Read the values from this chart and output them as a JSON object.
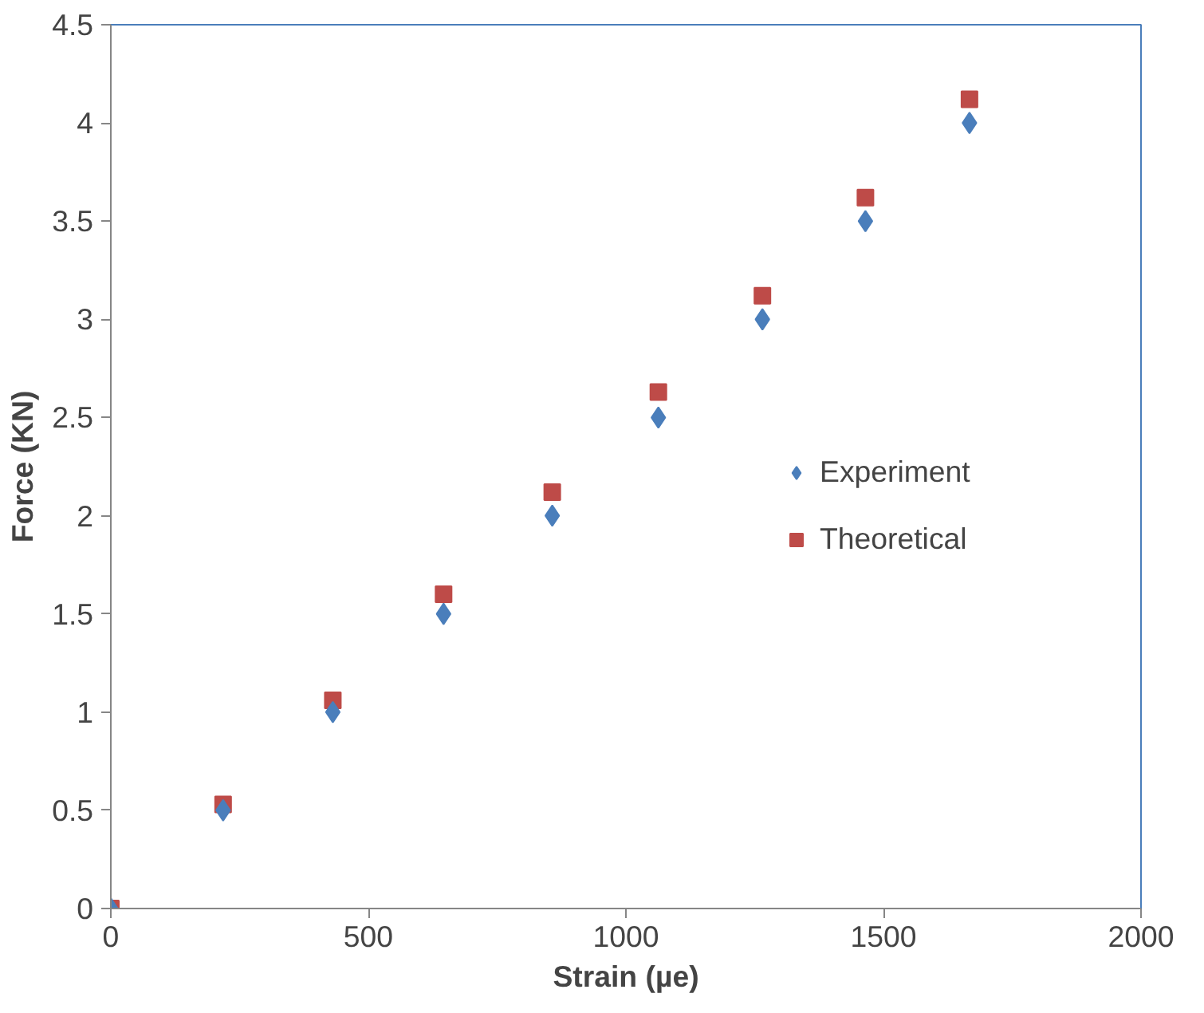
{
  "chart_data": {
    "type": "scatter",
    "xlabel": "Strain (µe)",
    "ylabel": "Force (KN)",
    "xlim": [
      0,
      2000
    ],
    "ylim": [
      0,
      4.5
    ],
    "xticks": [
      0,
      500,
      1000,
      1500,
      2000
    ],
    "yticks": [
      0,
      0.5,
      1,
      1.5,
      2,
      2.5,
      3,
      3.5,
      4,
      4.5
    ],
    "grid": false,
    "legend": "center",
    "series": [
      {
        "name": "Experiment",
        "color": "#4a7ebb",
        "marker": "diamond",
        "x": [
          0,
          218,
          431,
          646,
          857,
          1063,
          1265,
          1465,
          1667
        ],
        "values": [
          0,
          0.5,
          1,
          1.5,
          2,
          2.5,
          3,
          3.5,
          4
        ]
      },
      {
        "name": "Theoretical",
        "color": "#be4b48",
        "marker": "square",
        "x": [
          0,
          218,
          431,
          646,
          857,
          1063,
          1265,
          1465,
          1667
        ],
        "values": [
          0,
          0.53,
          1.06,
          1.6,
          2.12,
          2.63,
          3.12,
          3.62,
          4.12
        ]
      }
    ]
  }
}
